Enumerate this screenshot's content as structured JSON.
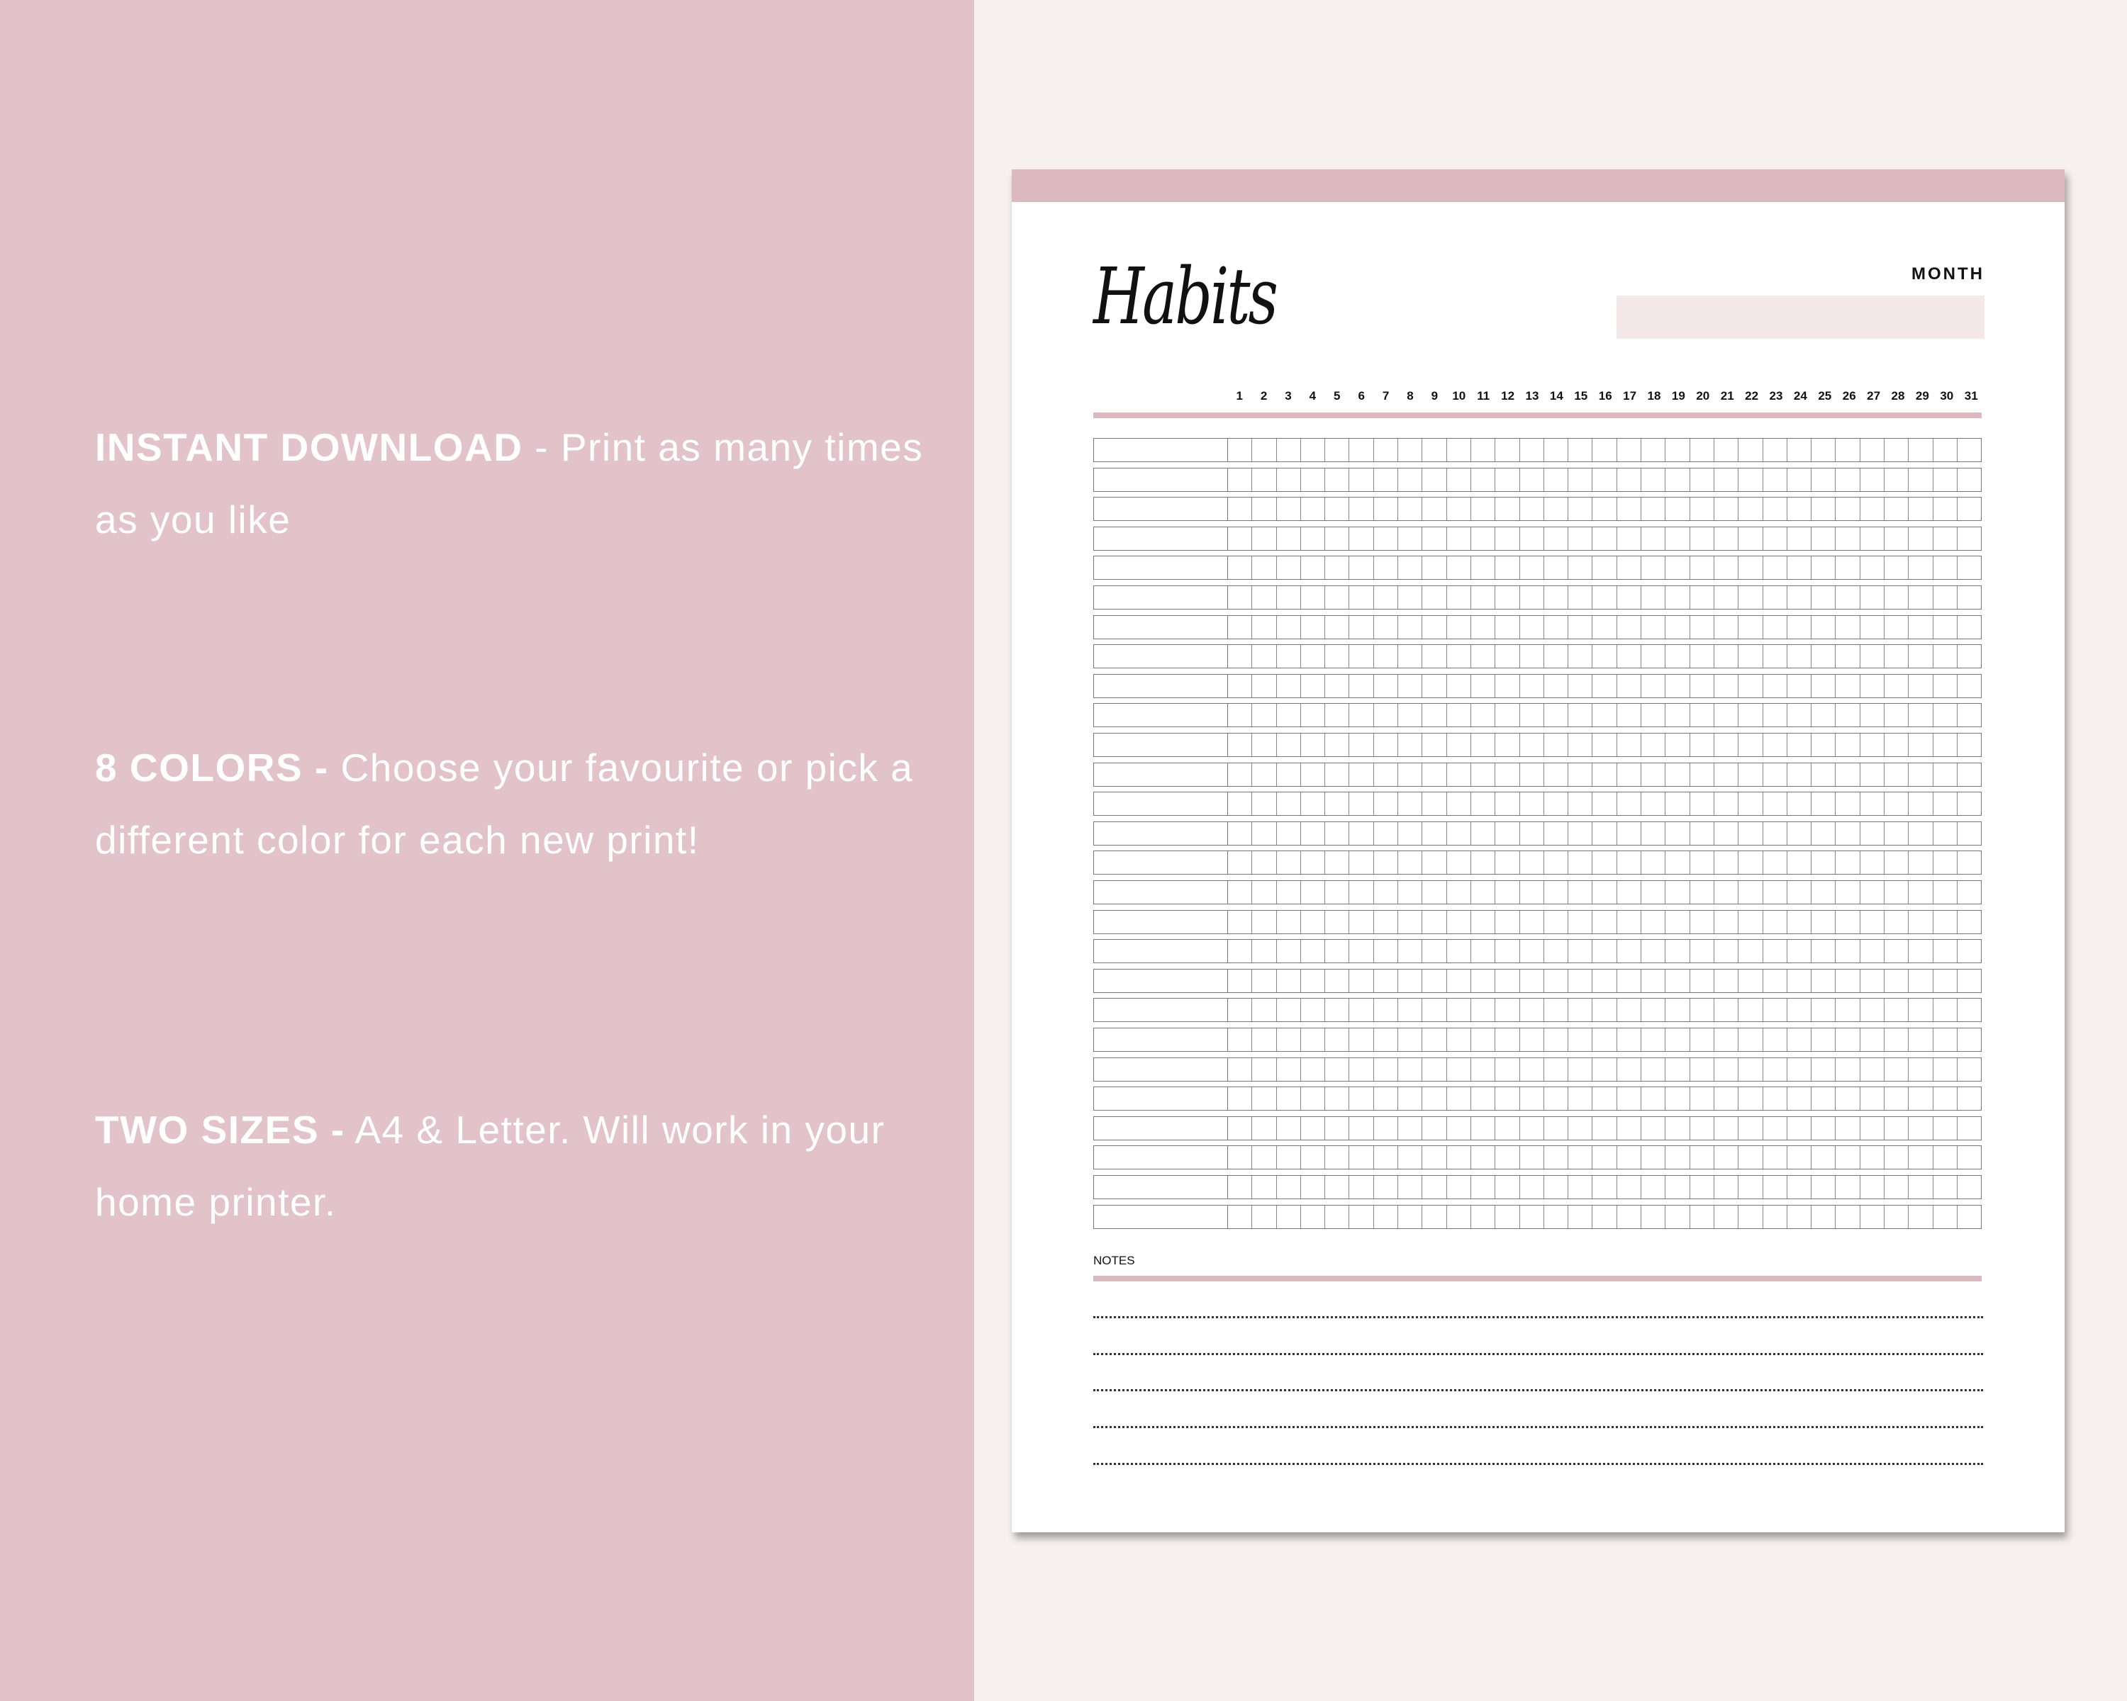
{
  "features": [
    {
      "bold": "INSTANT DOWNLOAD",
      "text": " - Print as many times as you like"
    },
    {
      "bold": "8 COLORS -",
      "text": " Choose your favourite or pick a different color for each new print!"
    },
    {
      "bold": "TWO SIZES -",
      "text": " A4 & Letter. Will work in your home printer."
    }
  ],
  "planner": {
    "title": "Habits",
    "month_label": "MONTH",
    "month_value": "",
    "days": [
      "1",
      "2",
      "3",
      "4",
      "5",
      "6",
      "7",
      "8",
      "9",
      "10",
      "11",
      "12",
      "13",
      "14",
      "15",
      "16",
      "17",
      "18",
      "19",
      "20",
      "21",
      "22",
      "23",
      "24",
      "25",
      "26",
      "27",
      "28",
      "29",
      "30",
      "31"
    ],
    "notes_label": "NOTES"
  },
  "colors": {
    "left_panel": "#e2c3ca",
    "accent": "#dcb8bf",
    "background": "#f7f0f0",
    "month_box": "#f5e8e8"
  }
}
